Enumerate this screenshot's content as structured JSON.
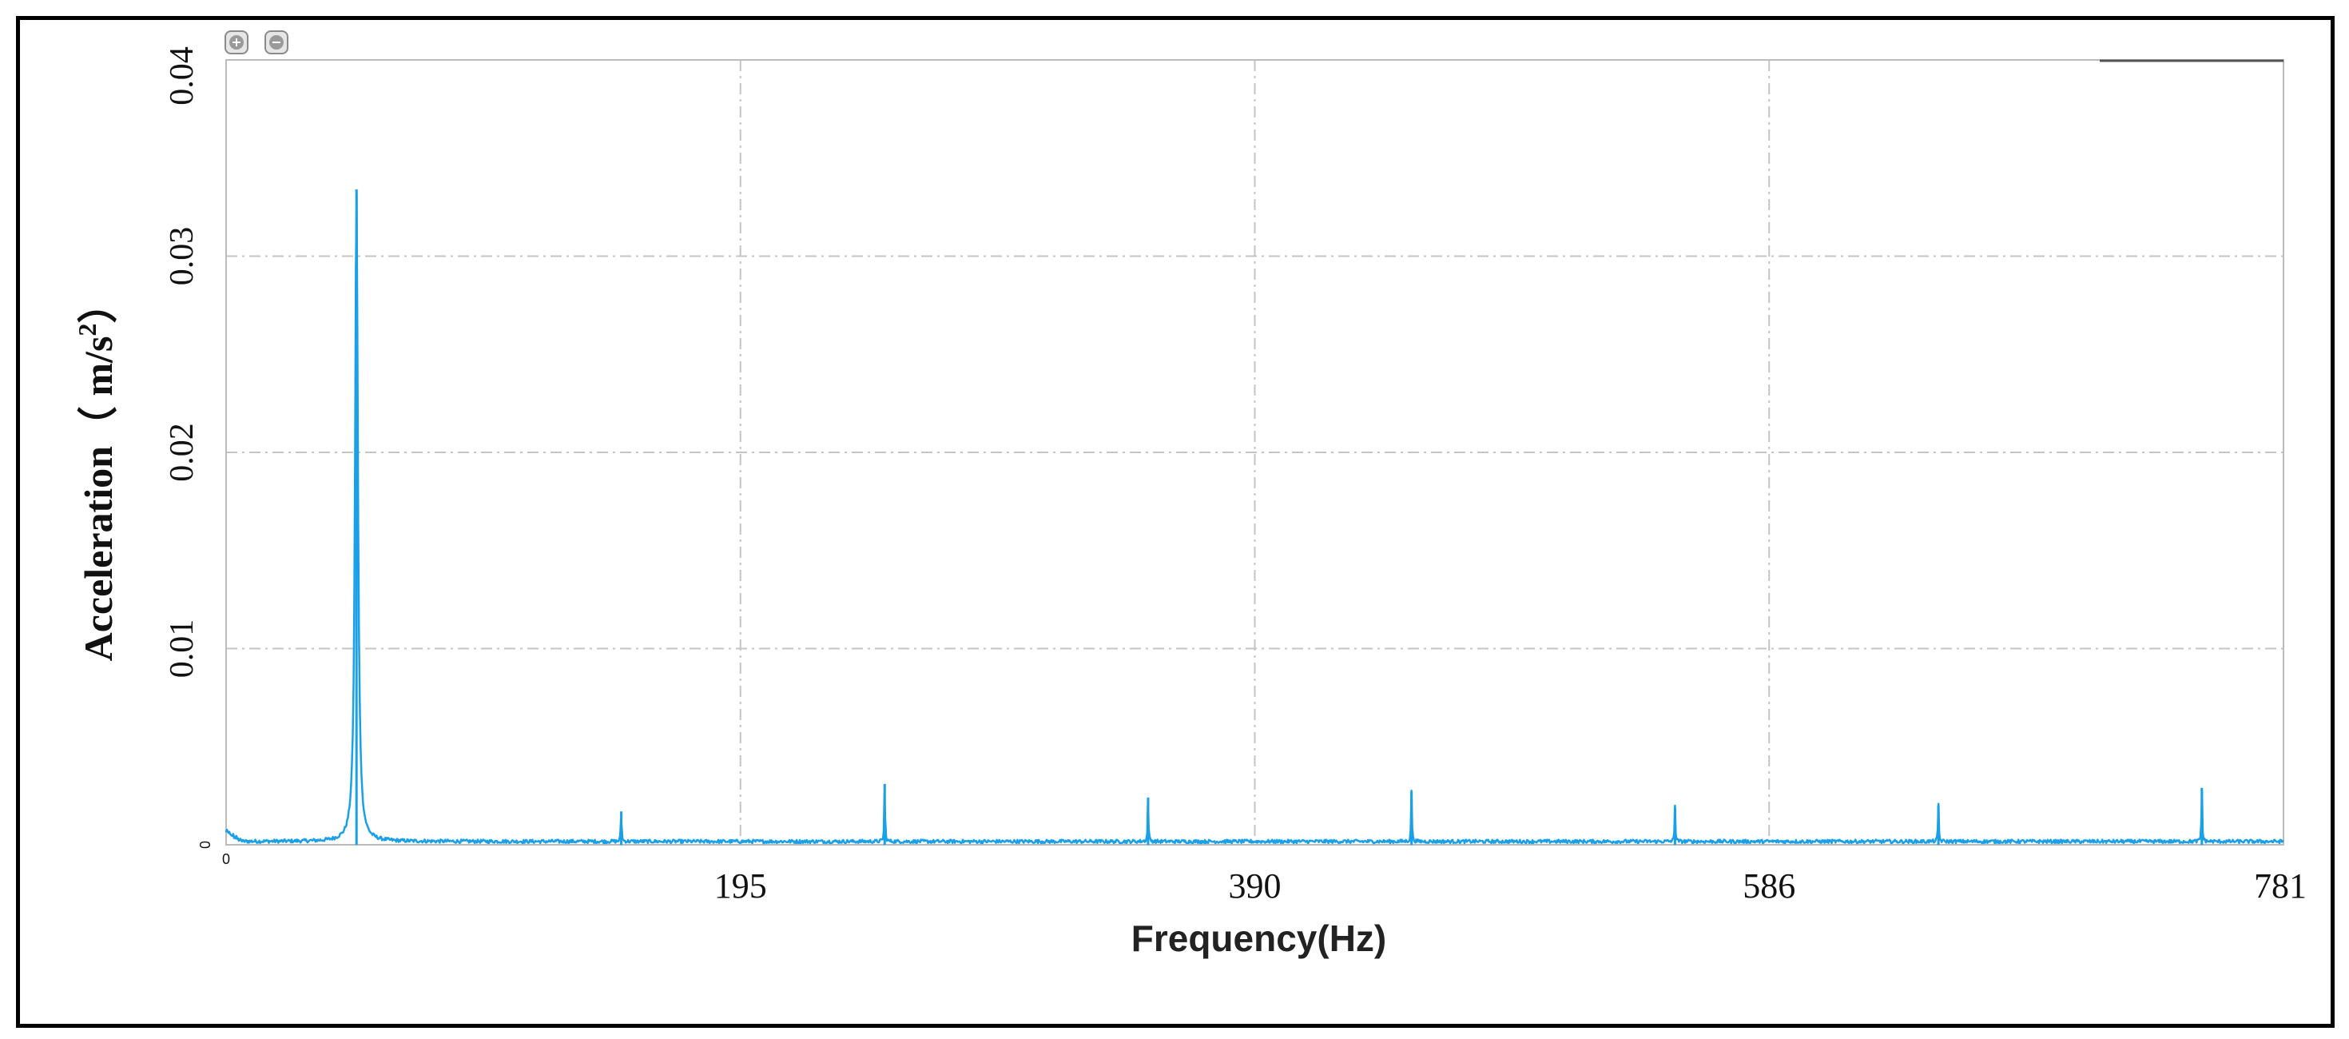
{
  "chart_data": {
    "type": "line",
    "xlabel": "Frequency(Hz)",
    "ylabel": "Acceleration（ m/s",
    "ylabel_sup": "2",
    "ylabel_close": "）",
    "x_ticks": [
      "0",
      "195",
      "390",
      "586",
      "781"
    ],
    "y_ticks": [
      "0",
      "0.01",
      "0.02",
      "0.03",
      "0.04"
    ],
    "xlim": [
      0,
      781
    ],
    "ylim": [
      0,
      0.04
    ],
    "grid": true,
    "line_color": "#1aa0e8",
    "series": [
      {
        "peaks": [
          {
            "x": 49.5,
            "y": 0.0334
          },
          {
            "x": 150,
            "y": 0.0017
          },
          {
            "x": 250,
            "y": 0.0031
          },
          {
            "x": 350,
            "y": 0.0024
          },
          {
            "x": 450,
            "y": 0.0027
          },
          {
            "x": 550,
            "y": 0.0019
          },
          {
            "x": 650,
            "y": 0.002
          },
          {
            "x": 750,
            "y": 0.0029
          }
        ],
        "noise_floor": 0.0002
      }
    ]
  },
  "toolbar": {
    "zoom_in_icon": "zoom-in-icon",
    "zoom_out_icon": "zoom-out-icon"
  }
}
